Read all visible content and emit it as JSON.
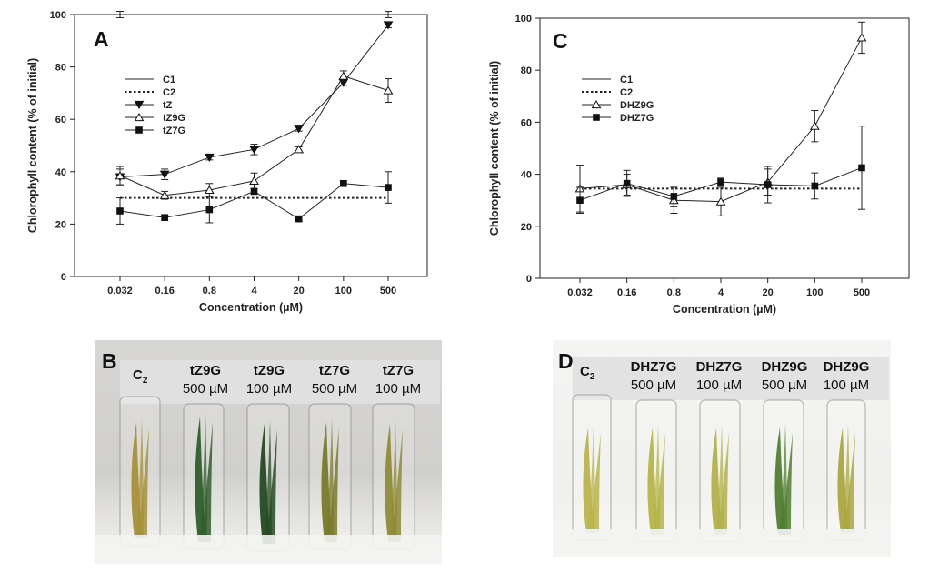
{
  "chart_data": [
    {
      "type": "line",
      "panel": "A",
      "x_categories": [
        "0.032",
        "0.16",
        "0.8",
        "4",
        "20",
        "100",
        "500"
      ],
      "xlabel": "Concentration (µM)",
      "ylabel": "Chlorophyll content (% of initial)",
      "ylim": [
        0,
        100
      ],
      "yticks": [
        0,
        20,
        40,
        60,
        80,
        100
      ],
      "grid": false,
      "legend_placement": "upper-left",
      "series": [
        {
          "name": "C1",
          "style": "solid",
          "x": [
            "0.032",
            "500"
          ],
          "values": [
            100,
            100
          ],
          "errors": [
            1.2,
            1.2
          ]
        },
        {
          "name": "C2",
          "style": "dotted",
          "x": [
            "0.032",
            "500"
          ],
          "values": [
            30,
            30
          ],
          "errors": [
            0,
            0
          ]
        },
        {
          "name": "tZ",
          "marker": "triangle-down-filled",
          "values": [
            38,
            39,
            45.5,
            48.5,
            56.5,
            74,
            96
          ],
          "errors": [
            3,
            2,
            1,
            2,
            1,
            1,
            1
          ]
        },
        {
          "name": "tZ9G",
          "marker": "triangle-up-open",
          "values": [
            38.5,
            31,
            33,
            36.5,
            48.5,
            76.5,
            71
          ],
          "errors": [
            3.5,
            1.5,
            2.5,
            3,
            1,
            2,
            4.5
          ]
        },
        {
          "name": "tZ7G",
          "marker": "square-filled",
          "values": [
            25,
            22.5,
            25.5,
            32.5,
            22,
            35.5,
            34
          ],
          "errors": [
            5,
            1,
            5,
            1,
            1,
            1,
            6
          ]
        }
      ]
    },
    {
      "type": "line",
      "panel": "C",
      "x_categories": [
        "0.032",
        "0.16",
        "0.8",
        "4",
        "20",
        "100",
        "500"
      ],
      "xlabel": "Concentration (µM)",
      "ylabel": "Chlorophyll content (% of initial)",
      "ylim": [
        0,
        100
      ],
      "yticks": [
        0,
        20,
        40,
        60,
        80,
        100
      ],
      "grid": false,
      "legend_placement": "upper-left",
      "series": [
        {
          "name": "C1",
          "style": "solid",
          "x": [
            "0.032",
            "500"
          ],
          "values": [
            100,
            100
          ],
          "errors": [
            0,
            0
          ]
        },
        {
          "name": "C2",
          "style": "dotted",
          "x": [
            "0.032",
            "500"
          ],
          "values": [
            34.5,
            34.5
          ],
          "errors": [
            0,
            0
          ]
        },
        {
          "name": "DHZ9G",
          "marker": "triangle-up-open",
          "values": [
            34.5,
            36,
            30,
            29.5,
            37,
            58.5,
            92.5
          ],
          "errors": [
            9,
            4,
            5,
            5.5,
            5,
            6,
            6
          ]
        },
        {
          "name": "DHZ7G",
          "marker": "square-filled",
          "values": [
            30,
            36.5,
            31.5,
            37,
            36,
            35.5,
            42.5
          ],
          "errors": [
            5,
            5,
            4,
            1.5,
            7,
            5,
            16
          ]
        }
      ]
    }
  ],
  "panels": {
    "A": {
      "letter": "A"
    },
    "B": {
      "letter": "B",
      "control": {
        "main": "C",
        "sub": "2"
      },
      "tubes": [
        {
          "line1": "tZ9G",
          "line2": "500 µM",
          "leaf": "#2f5e2a"
        },
        {
          "line1": "tZ9G",
          "line2": "100 µM",
          "leaf": "#244b22"
        },
        {
          "line1": "tZ7G",
          "line2": "500 µM",
          "leaf": "#7a7a2a"
        },
        {
          "line1": "tZ7G",
          "line2": "100 µM",
          "leaf": "#8f8b35"
        }
      ],
      "control_leaf": "#a7903a"
    },
    "C": {
      "letter": "C"
    },
    "D": {
      "letter": "D",
      "control": {
        "main": "C",
        "sub": "2"
      },
      "tubes": [
        {
          "line1": "DHZ7G",
          "line2": "500 µM",
          "leaf": "#b6b448"
        },
        {
          "line1": "DHZ7G",
          "line2": "100 µM",
          "leaf": "#b3b04a"
        },
        {
          "line1": "DHZ9G",
          "line2": "500 µM",
          "leaf": "#4f7d30"
        },
        {
          "line1": "DHZ9G",
          "line2": "100 µM",
          "leaf": "#a9a83f"
        }
      ],
      "control_leaf": "#b9b44c"
    }
  }
}
